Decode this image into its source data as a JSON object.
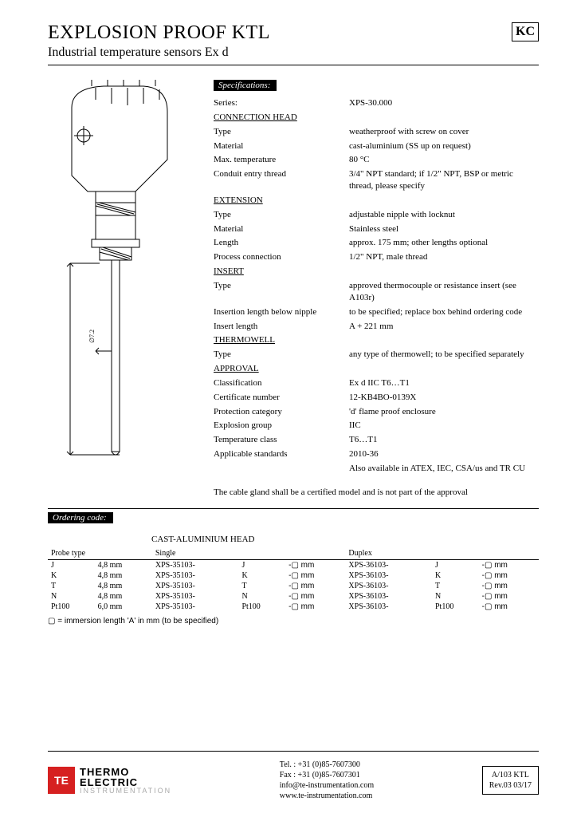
{
  "header": {
    "title": "EXPLOSION PROOF KTL",
    "subtitle": "Industrial temperature sensors Ex d",
    "mark": "KC"
  },
  "diagram": {
    "dim_label": "∅7.2"
  },
  "specs": {
    "label": "Specifications:",
    "series_key": "Series:",
    "series_val": "XPS-30.000",
    "sections": [
      {
        "heading": "CONNECTION HEAD",
        "rows": [
          {
            "k": "Type",
            "v": "weatherproof with screw on cover"
          },
          {
            "k": "Material",
            "v": "cast-aluminium (SS up on request)"
          },
          {
            "k": "Max. temperature",
            "v": "80 °C"
          },
          {
            "k": "Conduit entry thread",
            "v": "3/4\" NPT standard; if 1/2\" NPT, BSP or metric thread, please specify"
          }
        ]
      },
      {
        "heading": "EXTENSION",
        "rows": [
          {
            "k": "Type",
            "v": "adjustable nipple with locknut"
          },
          {
            "k": "Material",
            "v": "Stainless steel"
          },
          {
            "k": "Length",
            "v": "approx. 175 mm; other lengths optional"
          },
          {
            "k": "Process connection",
            "v": "1/2\" NPT, male thread"
          }
        ]
      },
      {
        "heading": "INSERT",
        "rows": [
          {
            "k": "Type",
            "v": "approved thermocouple or resistance insert (see A103r)"
          },
          {
            "k": "Insertion length below nipple",
            "v": "to be specified; replace box behind ordering code"
          },
          {
            "k": "Insert length",
            "v": "A + 221 mm"
          }
        ]
      },
      {
        "heading": "THERMOWELL",
        "rows": [
          {
            "k": "Type",
            "v": "any type of thermowell; to be specified separately"
          }
        ]
      },
      {
        "heading": "APPROVAL",
        "rows": [
          {
            "k": "Classification",
            "v": "Ex d IIC T6…T1"
          },
          {
            "k": "Certificate number",
            "v": "12-KB4BO-0139X"
          },
          {
            "k": "Protection category",
            "v": "'d' flame proof enclosure"
          },
          {
            "k": "Explosion group",
            "v": "IIC"
          },
          {
            "k": "Temperature class",
            "v": "T6…T1"
          },
          {
            "k": "Applicable standards",
            "v": " 2010-36"
          },
          {
            "k": "",
            "v": "Also available in ATEX, IEC, CSA/us and TR CU"
          }
        ]
      }
    ],
    "note": "The cable gland shall be a certified model and is not part of the approval"
  },
  "ordering": {
    "label": "Ordering code:",
    "head_title": "CAST-ALUMINIUM HEAD",
    "col_probe": "Probe type",
    "col_single": "Single",
    "col_duplex": "Duplex",
    "rows": [
      {
        "p": "J",
        "d": "4,8 mm",
        "s": "XPS-35103-",
        "sc": "J",
        "dx": "XPS-36103-",
        "dc": "J"
      },
      {
        "p": "K",
        "d": "4,8 mm",
        "s": "XPS-35103-",
        "sc": "K",
        "dx": "XPS-36103-",
        "dc": "K"
      },
      {
        "p": "T",
        "d": "4,8 mm",
        "s": "XPS-35103-",
        "sc": "T",
        "dx": "XPS-36103-",
        "dc": "T"
      },
      {
        "p": "N",
        "d": "4,8 mm",
        "s": "XPS-35103-",
        "sc": "N",
        "dx": "XPS-36103-",
        "dc": "N"
      },
      {
        "p": "Pt100",
        "d": "6,0 mm",
        "s": "XPS-35103-",
        "sc": "Pt100",
        "dx": "XPS-36103-",
        "dc": "Pt100"
      }
    ],
    "suffix": "-▢ mm",
    "footnote": "▢ = immersion length 'A' in mm (to be specified)"
  },
  "footer": {
    "logo_line1": "THERMO",
    "logo_line2": "ELECTRIC",
    "logo_sub": "INSTRUMENTATION",
    "tel": "Tel. : +31 (0)85-7607300",
    "fax": "Fax : +31 (0)85-7607301",
    "email": "info@te-instrumentation.com",
    "web": "www.te-instrumentation.com",
    "doc": "A/103 KTL",
    "rev": "Rev.03   03/17"
  }
}
